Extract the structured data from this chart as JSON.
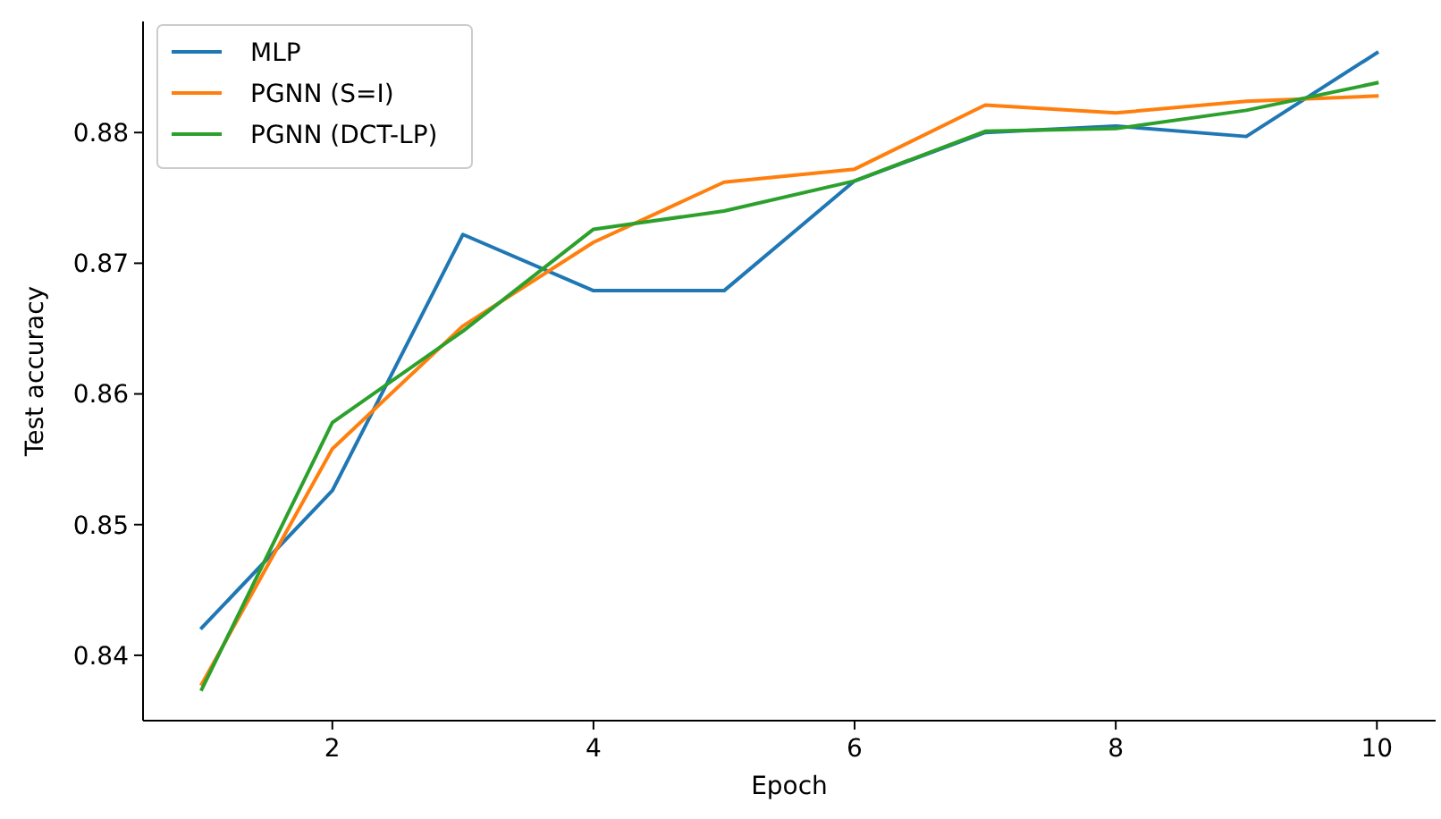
{
  "chart_data": {
    "type": "line",
    "xlabel": "Epoch",
    "ylabel": "Test accuracy",
    "x": [
      1,
      2,
      3,
      4,
      5,
      6,
      7,
      8,
      9,
      10
    ],
    "series": [
      {
        "name": "MLP",
        "color": "#1f77b4",
        "values": [
          0.8421,
          0.8526,
          0.8722,
          0.8679,
          0.8679,
          0.8763,
          0.88,
          0.8805,
          0.8797,
          0.8861
        ]
      },
      {
        "name": "PGNN (S=I)",
        "color": "#ff7f0e",
        "values": [
          0.8378,
          0.8558,
          0.8652,
          0.8716,
          0.8762,
          0.8772,
          0.8821,
          0.8815,
          0.8824,
          0.8828
        ]
      },
      {
        "name": "PGNN (DCT-LP)",
        "color": "#2ca02c",
        "values": [
          0.8374,
          0.8578,
          0.8648,
          0.8726,
          0.874,
          0.8763,
          0.8801,
          0.8803,
          0.8817,
          0.8838
        ]
      }
    ],
    "xlim": [
      0.55,
      10.45
    ],
    "ylim": [
      0.835,
      0.8885
    ],
    "xticks": [
      2,
      4,
      6,
      8,
      10
    ],
    "yticks": [
      {
        "value": 0.84,
        "label": "0.84"
      },
      {
        "value": 0.85,
        "label": "0.85"
      },
      {
        "value": 0.86,
        "label": "0.86"
      },
      {
        "value": 0.87,
        "label": "0.87"
      },
      {
        "value": 0.88,
        "label": "0.88"
      }
    ],
    "legend": "top left",
    "grid": false,
    "marker": "none",
    "line_style": "solid"
  }
}
